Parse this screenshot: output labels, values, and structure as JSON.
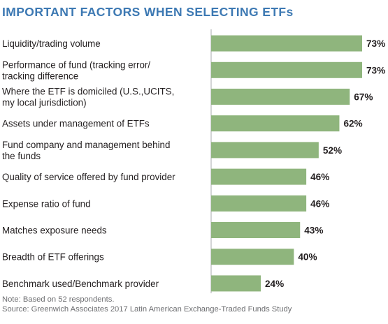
{
  "title": "IMPORTANT FACTORS WHEN SELECTING ETFs",
  "note": "Note: Based on 52 respondents.",
  "source": "Source: Greenwich Associates 2017 Latin American Exchange-Traded Funds Study",
  "colors": {
    "bar": "#8fb57d",
    "title": "#3d79b3",
    "axis": "#a7a9ac"
  },
  "chart_data": {
    "type": "bar",
    "orientation": "horizontal",
    "categories": [
      [
        "Liquidity/trading volume"
      ],
      [
        "Performance of fund (tracking error/",
        "tracking difference"
      ],
      [
        "Where the ETF is domiciled (U.S.,UCITS,",
        "my local jurisdiction)"
      ],
      [
        "Assets under management of ETFs"
      ],
      [
        "Fund company and management behind",
        "the funds"
      ],
      [
        "Quality of service offered by fund provider"
      ],
      [
        "Expense ratio of fund"
      ],
      [
        "Matches exposure needs"
      ],
      [
        "Breadth of ETF offerings"
      ],
      [
        "Benchmark used/Benchmark provider"
      ]
    ],
    "values": [
      73,
      73,
      67,
      62,
      52,
      46,
      46,
      43,
      40,
      24
    ],
    "value_labels": [
      "73%",
      "73%",
      "67%",
      "62%",
      "52%",
      "46%",
      "46%",
      "43%",
      "40%",
      "24%"
    ],
    "xlim": [
      0,
      73
    ],
    "grid": false,
    "legend": "none"
  }
}
